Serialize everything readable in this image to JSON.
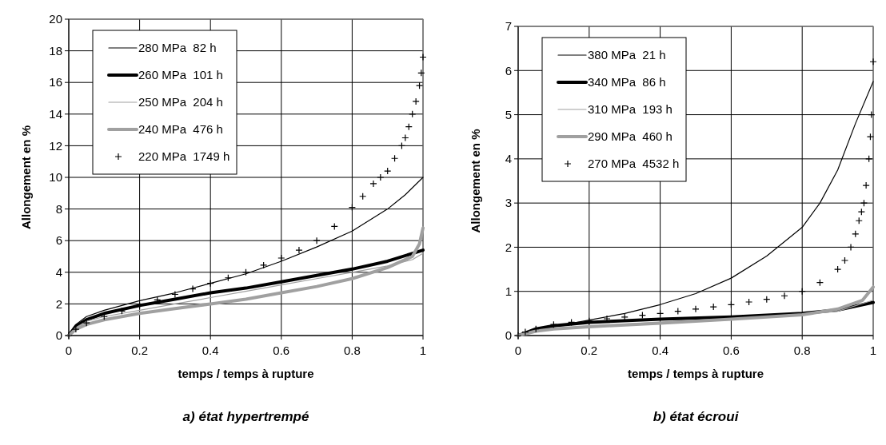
{
  "chart_data": [
    {
      "type": "line",
      "title": "a) état hypertrempé",
      "xlabel": "temps / temps à rupture",
      "ylabel": "Allongement en %",
      "xlim": [
        0,
        1
      ],
      "xticks": [
        0,
        0.2,
        0.4,
        0.6,
        0.8,
        1
      ],
      "ylim": [
        0,
        20
      ],
      "yticks": [
        0,
        2,
        4,
        6,
        8,
        10,
        12,
        14,
        16,
        18,
        20
      ],
      "grid": true,
      "legend": "top left",
      "series": [
        {
          "name": "280 MPa  82 h",
          "color": "#000000",
          "marker": "none",
          "x": [
            0,
            0.02,
            0.05,
            0.1,
            0.2,
            0.3,
            0.4,
            0.5,
            0.6,
            0.7,
            0.8,
            0.9,
            0.95,
            1
          ],
          "values": [
            0,
            0.7,
            1.2,
            1.6,
            2.2,
            2.7,
            3.3,
            3.9,
            4.7,
            5.6,
            6.6,
            8.0,
            8.9,
            10
          ]
        },
        {
          "name": "260 MPa  101 h",
          "color": "#000000",
          "marker": "none",
          "x": [
            0,
            0.02,
            0.05,
            0.1,
            0.2,
            0.3,
            0.4,
            0.5,
            0.6,
            0.7,
            0.8,
            0.9,
            1
          ],
          "values": [
            0,
            0.6,
            1.0,
            1.4,
            1.9,
            2.3,
            2.7,
            3.0,
            3.4,
            3.8,
            4.2,
            4.7,
            5.4
          ]
        },
        {
          "name": "250 MPa  204 h",
          "color": "#a0a0a0",
          "marker": "none",
          "x": [
            0,
            0.02,
            0.05,
            0.1,
            0.2,
            0.3,
            0.4,
            0.5,
            0.6,
            0.7,
            0.8,
            0.9,
            0.97,
            1
          ],
          "values": [
            0,
            0.5,
            0.9,
            1.2,
            1.6,
            2.0,
            2.4,
            2.8,
            3.2,
            3.6,
            4.0,
            4.4,
            4.8,
            5.2
          ]
        },
        {
          "name": "240 MPa  476 h",
          "color": "#a0a0a0",
          "marker": "none",
          "x": [
            0,
            0.02,
            0.05,
            0.1,
            0.2,
            0.3,
            0.4,
            0.5,
            0.6,
            0.7,
            0.8,
            0.9,
            0.97,
            0.99,
            1
          ],
          "values": [
            0,
            0.4,
            0.7,
            1.0,
            1.4,
            1.7,
            2.0,
            2.3,
            2.7,
            3.1,
            3.6,
            4.3,
            5.0,
            5.8,
            6.8
          ]
        },
        {
          "name": "220 MPa  1749 h",
          "type": "scatter",
          "color": "#000000",
          "marker": "cross",
          "x": [
            0,
            0.02,
            0.05,
            0.1,
            0.15,
            0.2,
            0.25,
            0.3,
            0.35,
            0.4,
            0.45,
            0.5,
            0.55,
            0.6,
            0.65,
            0.7,
            0.75,
            0.8,
            0.83,
            0.86,
            0.88,
            0.9,
            0.92,
            0.94,
            0.95,
            0.96,
            0.97,
            0.98,
            0.99,
            0.995,
            1
          ],
          "values": [
            0,
            0.4,
            0.8,
            1.2,
            1.55,
            1.9,
            2.25,
            2.6,
            2.95,
            3.3,
            3.65,
            4.0,
            4.45,
            4.9,
            5.4,
            6.0,
            6.9,
            8.1,
            8.8,
            9.6,
            10.0,
            10.4,
            11.2,
            12.0,
            12.5,
            13.2,
            14.0,
            14.8,
            15.8,
            16.6,
            17.6
          ]
        }
      ]
    },
    {
      "type": "line",
      "title": "b) état écroui",
      "xlabel": "temps / temps à rupture",
      "ylabel": "Allongement en %",
      "xlim": [
        0,
        1
      ],
      "xticks": [
        0,
        0.2,
        0.4,
        0.6,
        0.8,
        1
      ],
      "ylim": [
        0,
        7
      ],
      "yticks": [
        0,
        1,
        2,
        3,
        4,
        5,
        6,
        7
      ],
      "grid": true,
      "legend": "top left",
      "series": [
        {
          "name": "380 MPa  21 h",
          "color": "#000000",
          "marker": "none",
          "x": [
            0,
            0.05,
            0.1,
            0.2,
            0.3,
            0.4,
            0.5,
            0.6,
            0.7,
            0.8,
            0.85,
            0.9,
            0.95,
            1
          ],
          "values": [
            0,
            0.1,
            0.2,
            0.35,
            0.5,
            0.7,
            0.95,
            1.3,
            1.8,
            2.45,
            3.0,
            3.75,
            4.8,
            5.75
          ]
        },
        {
          "name": "340 MPa  86 h",
          "color": "#000000",
          "marker": "none",
          "x": [
            0,
            0.05,
            0.1,
            0.2,
            0.4,
            0.6,
            0.8,
            0.9,
            1
          ],
          "values": [
            0,
            0.15,
            0.22,
            0.3,
            0.37,
            0.42,
            0.5,
            0.58,
            0.75
          ]
        },
        {
          "name": "310 MPa  193 h",
          "color": "#a0a0a0",
          "marker": "none",
          "x": [
            0,
            0.05,
            0.1,
            0.2,
            0.4,
            0.6,
            0.8,
            0.9,
            1
          ],
          "values": [
            0,
            0.1,
            0.15,
            0.22,
            0.3,
            0.38,
            0.47,
            0.55,
            0.8
          ]
        },
        {
          "name": "290 MPa  460 h",
          "color": "#a0a0a0",
          "marker": "none",
          "x": [
            0,
            0.05,
            0.1,
            0.2,
            0.4,
            0.6,
            0.8,
            0.9,
            0.97,
            1
          ],
          "values": [
            0,
            0.1,
            0.15,
            0.2,
            0.28,
            0.37,
            0.47,
            0.6,
            0.8,
            1.1
          ]
        },
        {
          "name": "270 MPa  4532 h",
          "type": "scatter",
          "color": "#000000",
          "marker": "cross",
          "x": [
            0,
            0.02,
            0.05,
            0.1,
            0.15,
            0.2,
            0.25,
            0.3,
            0.35,
            0.4,
            0.45,
            0.5,
            0.55,
            0.6,
            0.65,
            0.7,
            0.75,
            0.8,
            0.85,
            0.9,
            0.92,
            0.937,
            0.95,
            0.96,
            0.967,
            0.974,
            0.98,
            0.988,
            0.992,
            0.995,
            1
          ],
          "values": [
            0,
            0.08,
            0.15,
            0.25,
            0.3,
            0.33,
            0.38,
            0.42,
            0.46,
            0.5,
            0.55,
            0.6,
            0.65,
            0.7,
            0.76,
            0.82,
            0.9,
            1.0,
            1.2,
            1.5,
            1.7,
            2.0,
            2.3,
            2.6,
            2.8,
            3.0,
            3.4,
            4.0,
            4.5,
            5.0,
            6.2
          ]
        }
      ]
    }
  ]
}
